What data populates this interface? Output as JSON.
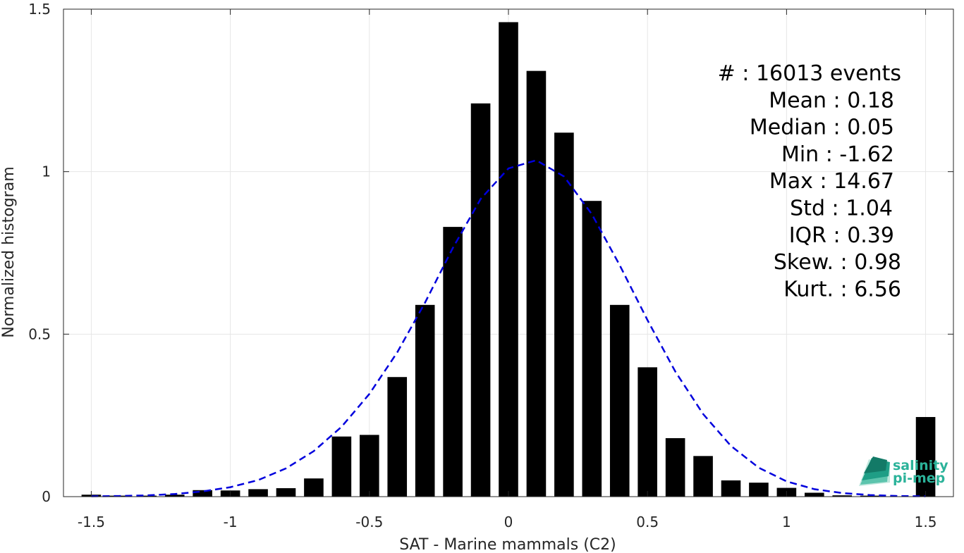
{
  "chart_data": {
    "type": "bar",
    "xlabel": "SAT - Marine mammals (C2)",
    "ylabel": "Normalized histogram",
    "xlim": [
      -1.6,
      1.6
    ],
    "ylim": [
      0,
      1.5
    ],
    "xticks": [
      -1.5,
      -1,
      -0.5,
      0,
      0.5,
      1,
      1.5
    ],
    "xtick_labels": [
      "-1.5",
      "-1",
      "-0.5",
      "0",
      "0.5",
      "1",
      "1.5"
    ],
    "yticks": [
      0,
      0.5,
      1,
      1.5
    ],
    "ytick_labels": [
      "0",
      "0.5",
      "1",
      "1.5"
    ],
    "grid": true,
    "bar_color": "#000000",
    "bin_width": 0.1,
    "bars": {
      "x": [
        -1.5,
        -1.4,
        -1.3,
        -1.2,
        -1.1,
        -1.0,
        -0.9,
        -0.8,
        -0.7,
        -0.6,
        -0.5,
        -0.4,
        -0.3,
        -0.2,
        -0.1,
        0.0,
        0.1,
        0.2,
        0.3,
        0.4,
        0.5,
        0.6,
        0.7,
        0.8,
        0.9,
        1.0,
        1.1,
        1.2,
        1.3,
        1.5
      ],
      "values": [
        0.006,
        0.003,
        0.003,
        0.006,
        0.02,
        0.019,
        0.023,
        0.026,
        0.056,
        0.185,
        0.19,
        0.368,
        0.59,
        0.83,
        1.21,
        1.46,
        1.31,
        1.12,
        0.91,
        0.59,
        0.398,
        0.18,
        0.125,
        0.05,
        0.043,
        0.027,
        0.012,
        0.004,
        0.003,
        0.245
      ]
    },
    "fit_curve": {
      "type": "normal",
      "style": "dashed",
      "color": "#0000dd",
      "x": [
        -1.5,
        -1.4,
        -1.3,
        -1.2,
        -1.1,
        -1.0,
        -0.9,
        -0.8,
        -0.7,
        -0.6,
        -0.5,
        -0.4,
        -0.3,
        -0.2,
        -0.1,
        0.0,
        0.1,
        0.2,
        0.3,
        0.4,
        0.5,
        0.6,
        0.7,
        0.8,
        0.9,
        1.0,
        1.1,
        1.2,
        1.3,
        1.4,
        1.5
      ],
      "y": [
        0.001,
        0.002,
        0.004,
        0.008,
        0.016,
        0.029,
        0.051,
        0.087,
        0.14,
        0.215,
        0.316,
        0.444,
        0.597,
        0.765,
        0.916,
        1.01,
        1.035,
        0.985,
        0.869,
        0.712,
        0.543,
        0.385,
        0.254,
        0.156,
        0.089,
        0.047,
        0.023,
        0.011,
        0.005,
        0.002,
        0.001
      ]
    }
  },
  "stats": {
    "lines": [
      "#  : 16013 events",
      "Mean : 0.18",
      "Median : 0.05",
      "Min : -1.62",
      "Max : 14.67",
      "Std : 1.04",
      "IQR : 0.39",
      "Skew. : 0.98",
      "Kurt. : 6.56"
    ]
  },
  "logo": {
    "line1": "salinity",
    "line2": "pi-mep",
    "color": "#2bb39a"
  }
}
